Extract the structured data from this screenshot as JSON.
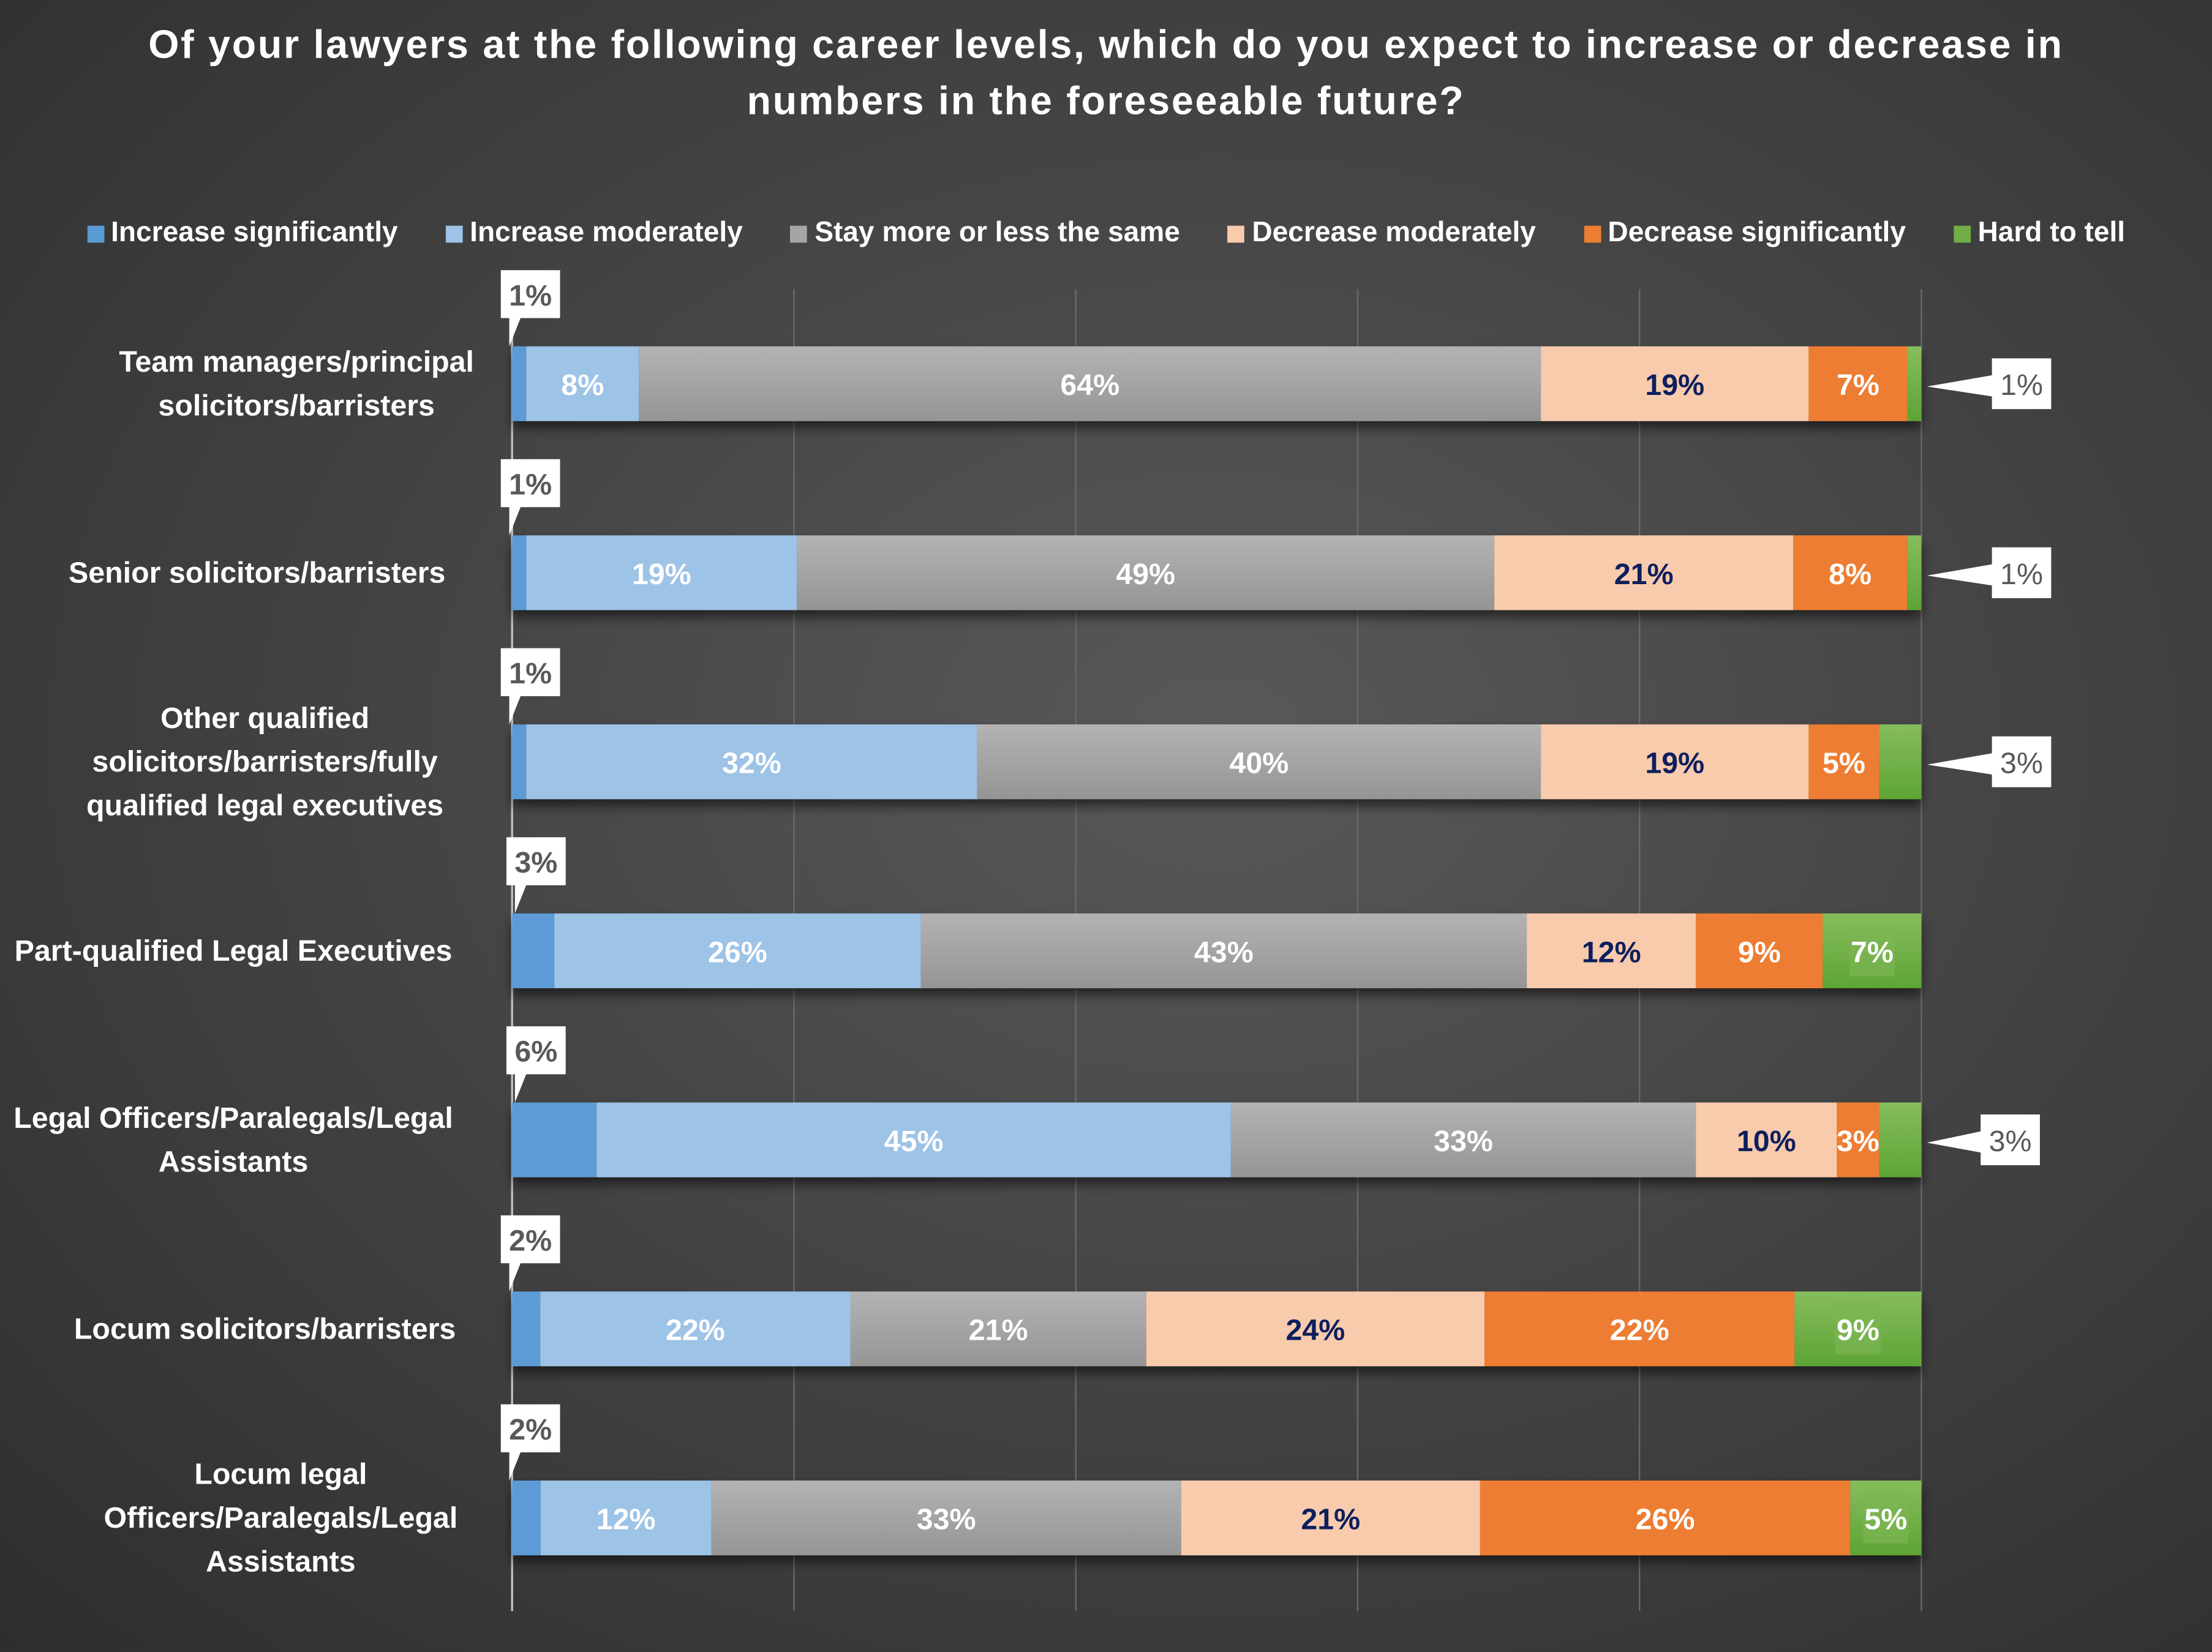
{
  "chart_data": {
    "type": "bar",
    "orientation": "horizontal-stacked-100",
    "title": "Of your lawyers at the following career levels, which do you expect to increase or decrease in numbers in the foreseeable future?",
    "categories": [
      "Team managers/principal solicitors/barristers",
      "Senior solicitors/barristers",
      "Other qualified solicitors/barristers/fully qualified legal executives",
      "Part-qualified Legal Executives",
      "Legal Officers/Paralegals/Legal Assistants",
      "Locum solicitors/barristers",
      "Locum legal Officers/Paralegals/Legal Assistants"
    ],
    "series": [
      {
        "name": "Increase significantly",
        "color": "#5b9bd5",
        "label_color": "#595959",
        "values": [
          1,
          1,
          1,
          3,
          6,
          2,
          2
        ]
      },
      {
        "name": "Increase moderately",
        "color": "#9dc3e6",
        "label_color": "#ffffff",
        "values": [
          8,
          19,
          32,
          26,
          45,
          22,
          12
        ]
      },
      {
        "name": "Stay more or less the same",
        "color": "#a5a5a5",
        "label_color": "#ffffff",
        "values": [
          64,
          49,
          40,
          43,
          33,
          21,
          33
        ]
      },
      {
        "name": "Decrease moderately",
        "color": "#f8cbad",
        "label_color": "#0d1f5c",
        "values": [
          19,
          21,
          19,
          12,
          10,
          24,
          21
        ]
      },
      {
        "name": "Decrease significantly",
        "color": "#ed7d31",
        "label_color": "#ffffff",
        "values": [
          7,
          8,
          5,
          9,
          3,
          22,
          26
        ]
      },
      {
        "name": "Hard to tell",
        "color": "#70ad47",
        "label_color": "#ffffff",
        "values": [
          1,
          1,
          3,
          7,
          3,
          9,
          5
        ]
      }
    ],
    "value_suffix": "%",
    "xlim": [
      0,
      100
    ],
    "grid": true,
    "legend_position": "top"
  }
}
